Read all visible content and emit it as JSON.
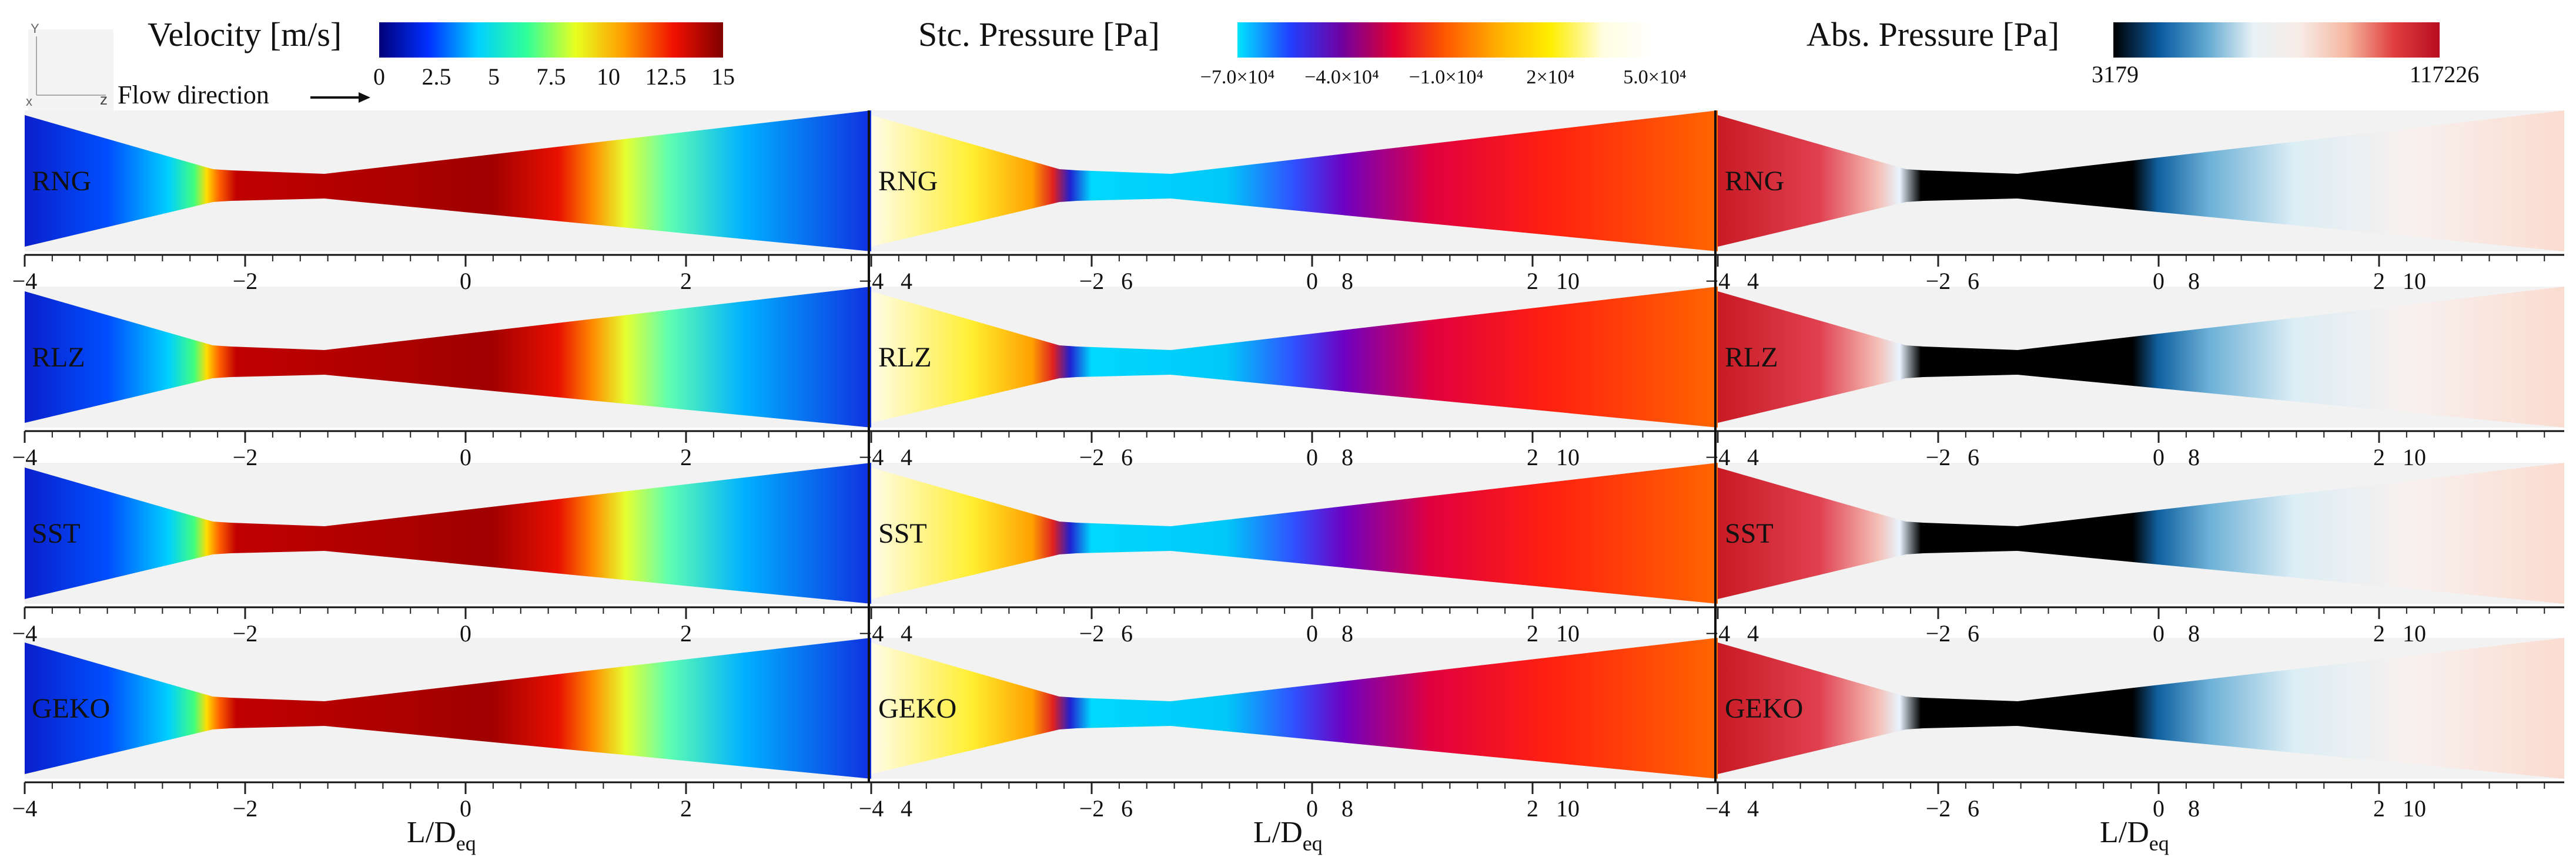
{
  "legends": {
    "velocity": {
      "title": "Velocity [m/s]",
      "ticks": [
        "0",
        "2.5",
        "5",
        "7.5",
        "10",
        "12.5",
        "15"
      ],
      "colors": [
        "#00007a",
        "#0030ff",
        "#00d0ff",
        "#30ff9a",
        "#e8ff20",
        "#ff9a00",
        "#f01000",
        "#800000"
      ]
    },
    "static_pressure": {
      "title": "Stc. Pressure [Pa]",
      "ticks": [
        "−7.0×10⁴",
        "−4.0×10⁴",
        "−1.0×10⁴",
        "2×10⁴",
        "5.0×10⁴"
      ],
      "colors": [
        "#00e5ff",
        "#2040ff",
        "#7000a0",
        "#e00030",
        "#ff5a00",
        "#ffb000",
        "#ffee00",
        "#fffde0",
        "#ffffff"
      ]
    },
    "absolute_pressure": {
      "title": "Abs. Pressure [Pa]",
      "ticks": [
        "3179",
        "117226"
      ],
      "colors": [
        "#000000",
        "#0a5aa0",
        "#60a8d0",
        "#e8f2f6",
        "#f8ece6",
        "#f5b8a0",
        "#e04040",
        "#b80c20"
      ]
    }
  },
  "orientation": {
    "y_axis": "Y",
    "z_axis": "z",
    "x_axis": "x",
    "flow_label": "Flow direction"
  },
  "turbulence_models": [
    "RNG",
    "RLZ",
    "SST",
    "GEKO"
  ],
  "axis": {
    "tick_labels": [
      "−4",
      "−2",
      "0",
      "2",
      "4",
      "6",
      "8",
      "10"
    ],
    "xlabel_main": "L/D",
    "xlabel_sub": "eq",
    "range": [
      -4,
      11.5
    ]
  },
  "colors": {
    "frame": "#111111",
    "background": "#ffffff",
    "shadow": "#f2f2f2"
  }
}
